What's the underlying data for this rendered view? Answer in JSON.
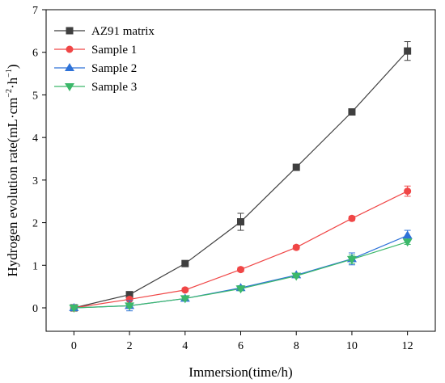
{
  "chart_data": {
    "type": "line",
    "xlabel": "Immersion(time/h)",
    "ylabel": "Hydrogen evolution rate(mL·cm⁻²·h⁻¹)",
    "ylabel_parts": {
      "base": "Hydrogen evolution rate(mL·cm",
      "sup1": "−2",
      "mid": "·h",
      "sup2": "−1",
      "end": ")"
    },
    "xlim": [
      -1,
      13
    ],
    "ylim": [
      -0.55,
      7
    ],
    "xticks": [
      0,
      2,
      4,
      6,
      8,
      10,
      12
    ],
    "yticks": [
      0,
      1,
      2,
      3,
      4,
      5,
      6,
      7
    ],
    "legend_position": "top-left",
    "x": [
      0,
      2,
      4,
      6,
      8,
      10,
      12
    ],
    "series": [
      {
        "name": "AZ91 matrix",
        "marker": "square",
        "color": "#3f3f3f",
        "values": [
          0,
          0.31,
          1.04,
          2.02,
          3.3,
          4.6,
          6.03
        ],
        "errors": [
          0.05,
          0.05,
          0.04,
          0.2,
          0.04,
          0.04,
          0.22
        ]
      },
      {
        "name": "Sample 1",
        "marker": "circle",
        "color": "#f04646",
        "values": [
          0,
          0.2,
          0.42,
          0.9,
          1.42,
          2.1,
          2.74
        ],
        "errors": [
          0.04,
          0.04,
          0.04,
          0.05,
          0.05,
          0.05,
          0.12
        ]
      },
      {
        "name": "Sample 2",
        "marker": "triangle-up",
        "color": "#2e72d8",
        "values": [
          0,
          0.05,
          0.22,
          0.47,
          0.77,
          1.15,
          1.7
        ],
        "errors": [
          0.04,
          0.12,
          0.04,
          0.05,
          0.04,
          0.14,
          0.12
        ]
      },
      {
        "name": "Sample 3",
        "marker": "triangle-down",
        "color": "#3cb86a",
        "values": [
          0,
          0.05,
          0.22,
          0.45,
          0.75,
          1.14,
          1.55
        ],
        "errors": [
          0.04,
          0.04,
          0.04,
          0.05,
          0.04,
          0.1,
          0.06
        ]
      }
    ]
  }
}
